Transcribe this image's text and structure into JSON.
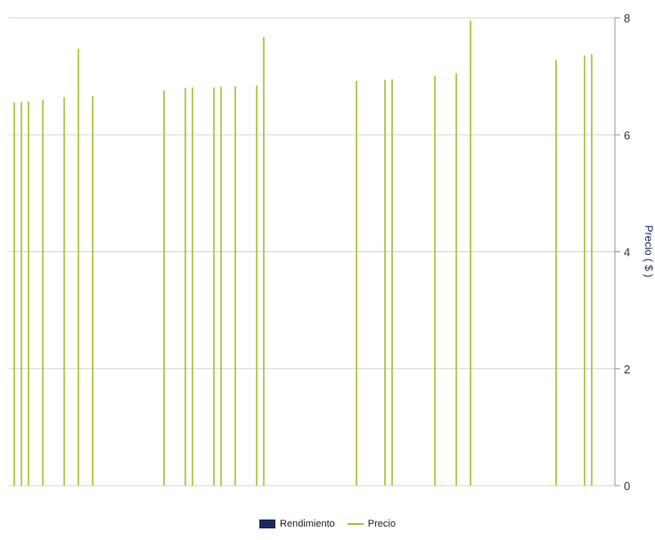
{
  "chart_data": {
    "type": "line",
    "y_axis": {
      "label": "Precio  ( $ )",
      "position": "right",
      "ylim": [
        0,
        8
      ],
      "ticks": [
        0,
        2,
        4,
        6,
        8
      ],
      "grid": true
    },
    "series": [
      {
        "name": "Rendimiento",
        "color": "#1b2a57",
        "style": "box",
        "points": []
      },
      {
        "name": "Precio",
        "color": "#a8c030",
        "style": "spikes",
        "points": [
          {
            "x": 1,
            "y": 6.55
          },
          {
            "x": 2,
            "y": 6.56
          },
          {
            "x": 3,
            "y": 6.57
          },
          {
            "x": 5,
            "y": 6.6
          },
          {
            "x": 8,
            "y": 6.64
          },
          {
            "x": 10,
            "y": 7.47
          },
          {
            "x": 12,
            "y": 6.66
          },
          {
            "x": 22,
            "y": 6.76
          },
          {
            "x": 25,
            "y": 6.8
          },
          {
            "x": 26,
            "y": 6.81
          },
          {
            "x": 29,
            "y": 6.81
          },
          {
            "x": 30,
            "y": 6.82
          },
          {
            "x": 32,
            "y": 6.83
          },
          {
            "x": 35,
            "y": 6.84
          },
          {
            "x": 36,
            "y": 7.67
          },
          {
            "x": 49,
            "y": 6.92
          },
          {
            "x": 53,
            "y": 6.94
          },
          {
            "x": 54,
            "y": 6.95
          },
          {
            "x": 60,
            "y": 7.01
          },
          {
            "x": 63,
            "y": 7.05
          },
          {
            "x": 65,
            "y": 7.95
          },
          {
            "x": 77,
            "y": 7.28
          },
          {
            "x": 81,
            "y": 7.35
          },
          {
            "x": 82,
            "y": 7.38
          }
        ]
      }
    ],
    "legend": "bottom-center"
  }
}
